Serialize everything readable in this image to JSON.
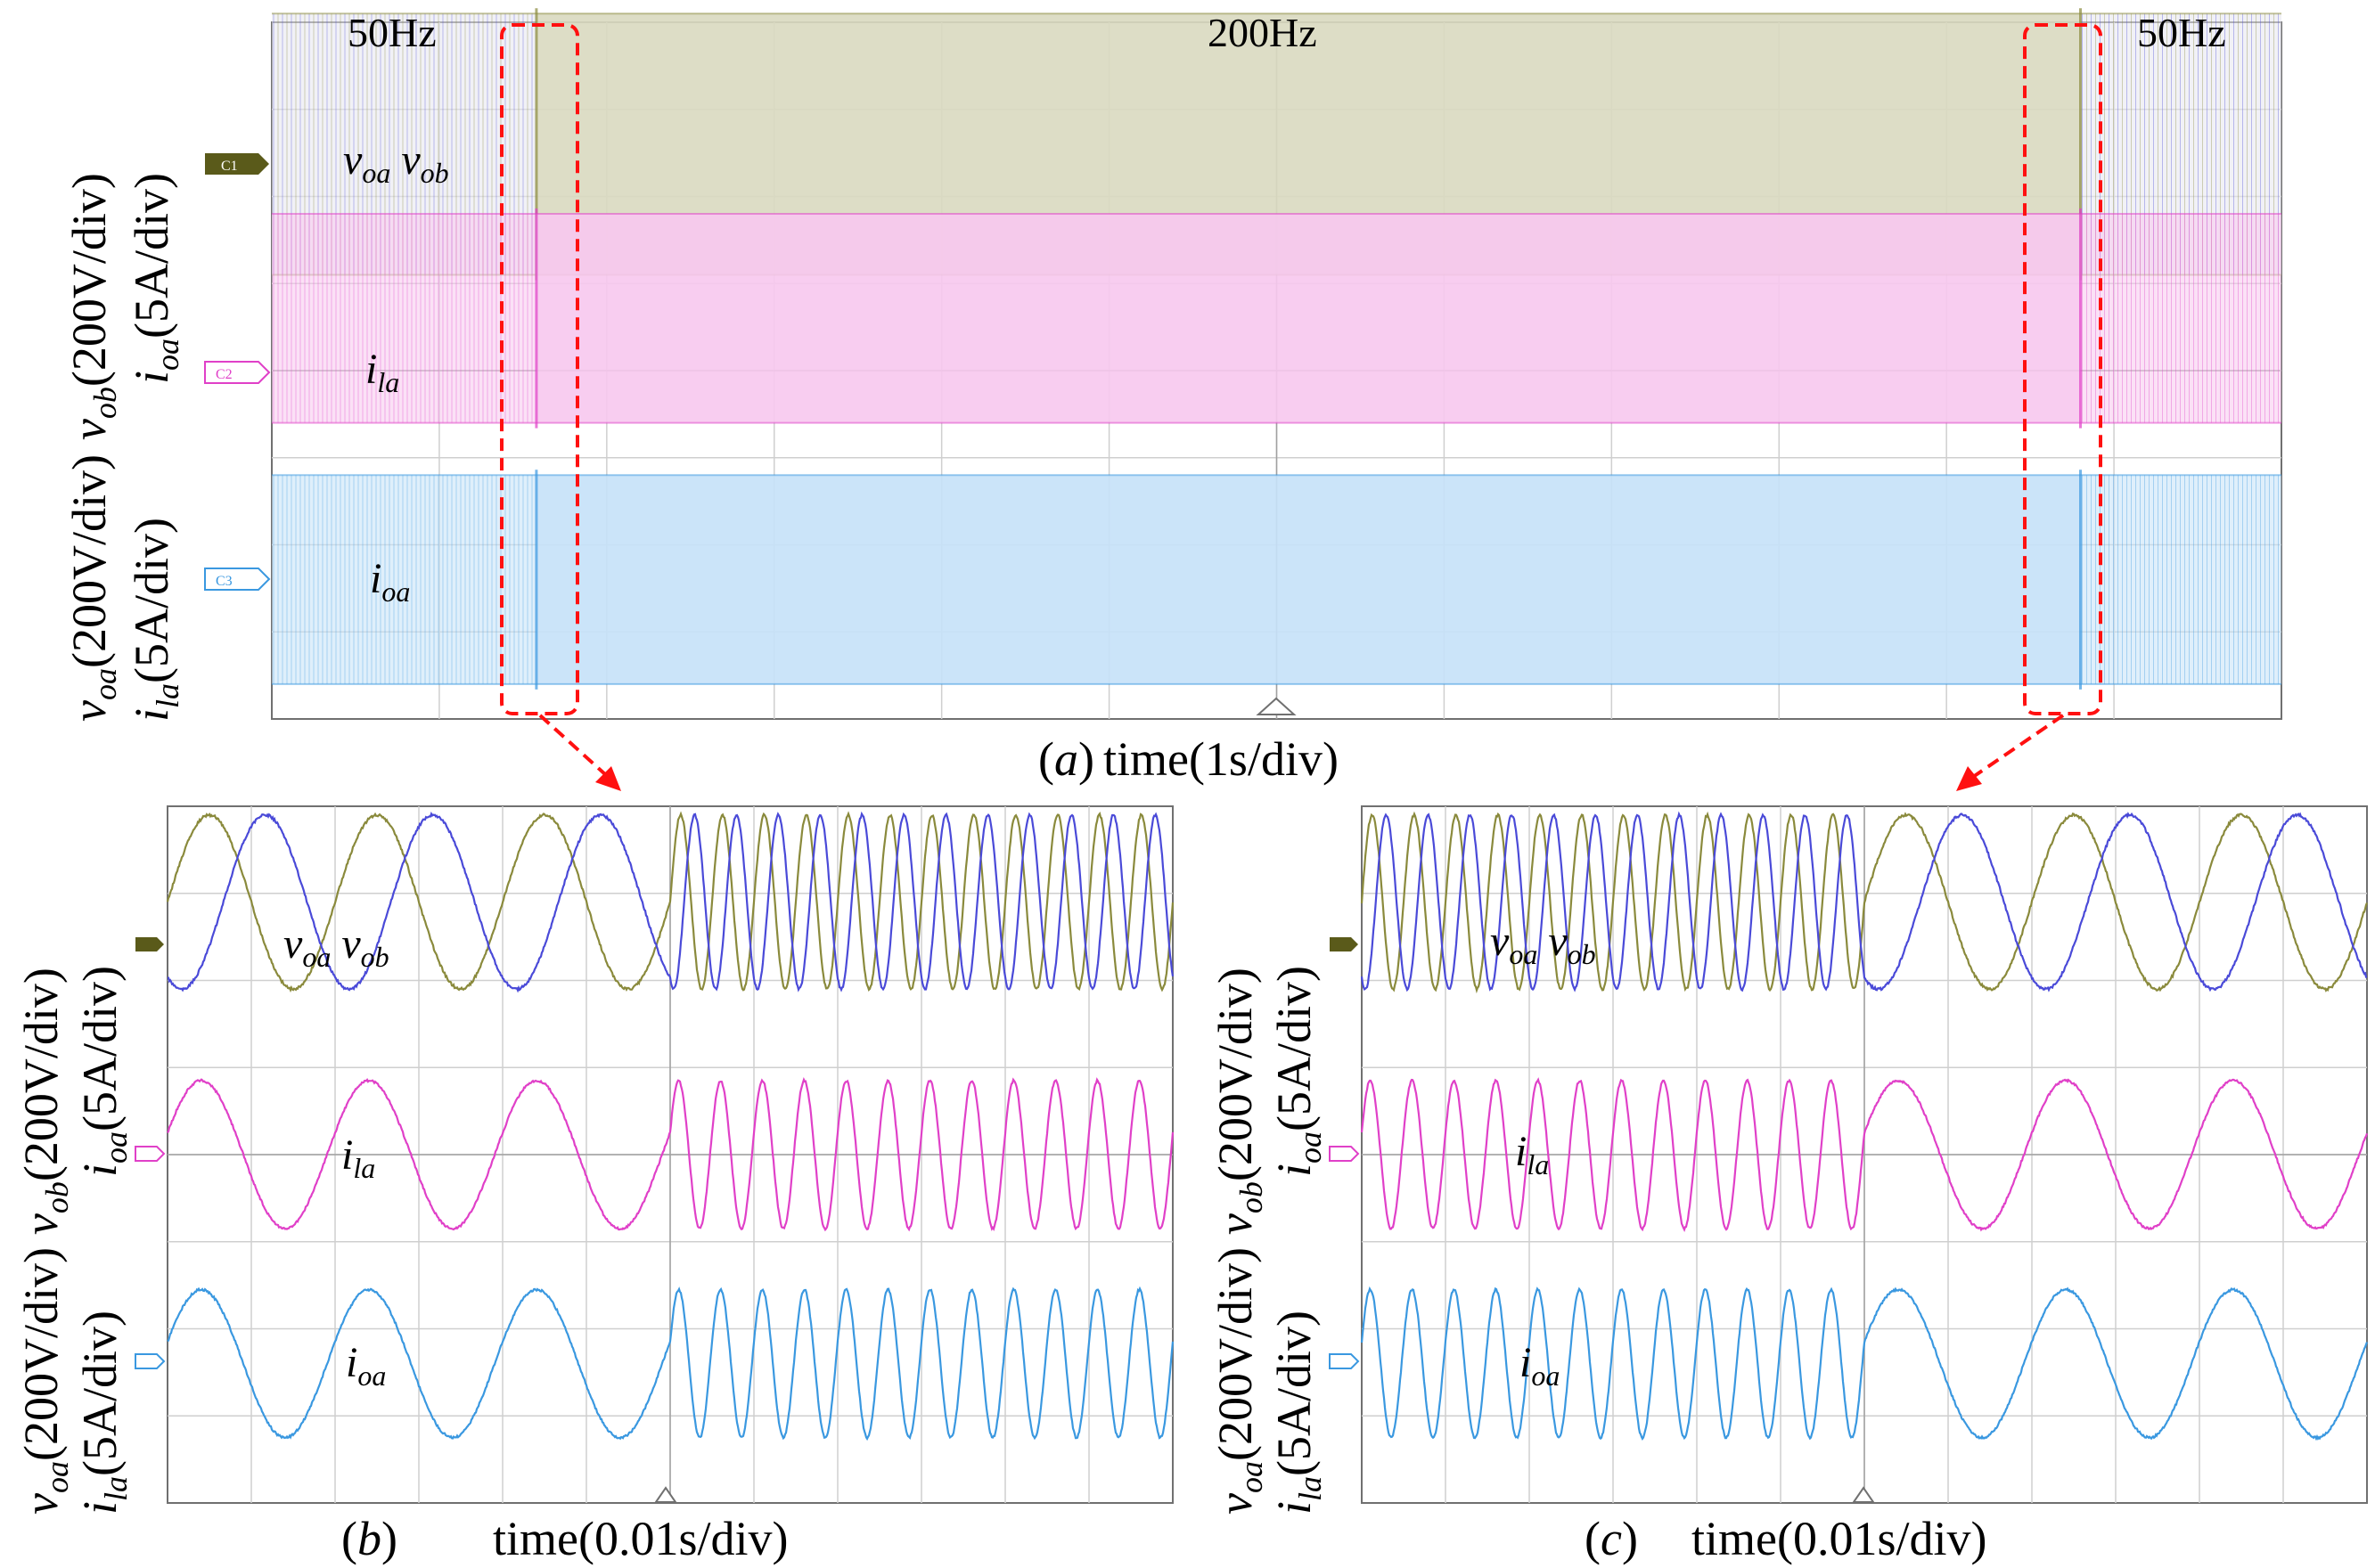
{
  "colors": {
    "voa": "#8a8a3c",
    "vob": "#4a4ad8",
    "ila": "#e040c8",
    "ioa": "#3a98e0",
    "grid": "#cfcfcf",
    "frame": "#707070",
    "highlight": "#ff1010",
    "c1_marker": "#5a5a1a",
    "c2_marker": "#e040c8",
    "c3_marker": "#3a98e0"
  },
  "panels": {
    "a": {
      "caption": "(a)",
      "caption_tag": "a",
      "xlabel": "time(1s/div)",
      "freq_labels": [
        "50Hz",
        "200Hz",
        "50Hz"
      ],
      "ylabel_lines": [
        "v",
        "oa",
        "(200V/div)",
        "v",
        "ob",
        "(200V/div)",
        "i",
        "la",
        "(5A/div)",
        "i",
        "oa",
        "(5A/div)"
      ]
    },
    "b": {
      "caption": "(b)",
      "caption_tag": "b",
      "xlabel": "time(0.01s/div)"
    },
    "c": {
      "caption": "(c)",
      "caption_tag": "c",
      "xlabel": "time(0.01s/div)"
    }
  },
  "signal_labels": {
    "v": "v",
    "oa": "oa",
    "ob": "ob",
    "i": "i",
    "la": "la"
  },
  "channel_markers": [
    "C1",
    "C2",
    "C3"
  ],
  "ylabel": {
    "voa_scale": "(200V/div)",
    "vob_scale": "(200V/div)",
    "ila_scale": "(5A/div)",
    "ioa_scale": "(5A/div)"
  },
  "chart_data": [
    {
      "type": "line",
      "panel": "a",
      "xlabel": "time(1s/div)",
      "x_divisions": 12,
      "y_divisions": 8,
      "grid": true,
      "annotations": [
        "50Hz",
        "200Hz",
        "50Hz"
      ],
      "transitions_div": [
        1.58,
        10.8
      ],
      "frequency_segments_hz": [
        50,
        200,
        50
      ],
      "series": [
        {
          "name": "v_oa",
          "channel": "C1",
          "amplitude_div": 1.5,
          "offset_div": 6.6
        },
        {
          "name": "v_ob",
          "channel": "C1",
          "amplitude_div": 1.5,
          "offset_div": 6.6
        },
        {
          "name": "i_la",
          "channel": "C2",
          "amplitude_div": 1.2,
          "offset_div": 4.6
        },
        {
          "name": "i_oa",
          "channel": "C3",
          "amplitude_div": 1.2,
          "offset_div": 1.6
        }
      ]
    },
    {
      "type": "line",
      "panel": "b",
      "xlabel": "time(0.01s/div)",
      "x_divisions": 12,
      "y_divisions": 8,
      "grid": true,
      "transition_div": 6,
      "frequency_before_hz": 50,
      "frequency_after_hz": 200,
      "series": [
        {
          "name": "v_oa",
          "channel": "C1",
          "amplitude_div": 1.0,
          "offset_div": 6.9
        },
        {
          "name": "v_ob",
          "channel": "C1",
          "amplitude_div": 1.0,
          "offset_div": 6.9
        },
        {
          "name": "i_la",
          "channel": "C2",
          "amplitude_div": 0.85,
          "offset_div": 4.0
        },
        {
          "name": "i_oa",
          "channel": "C3",
          "amplitude_div": 0.85,
          "offset_div": 1.6
        }
      ]
    },
    {
      "type": "line",
      "panel": "c",
      "xlabel": "time(0.01s/div)",
      "x_divisions": 12,
      "y_divisions": 8,
      "grid": true,
      "transition_div": 6,
      "frequency_before_hz": 200,
      "frequency_after_hz": 50,
      "series": [
        {
          "name": "v_oa",
          "channel": "C1",
          "amplitude_div": 1.0,
          "offset_div": 6.9
        },
        {
          "name": "v_ob",
          "channel": "C1",
          "amplitude_div": 1.0,
          "offset_div": 6.9
        },
        {
          "name": "i_la",
          "channel": "C2",
          "amplitude_div": 0.85,
          "offset_div": 4.0
        },
        {
          "name": "i_oa",
          "channel": "C3",
          "amplitude_div": 0.85,
          "offset_div": 1.6
        }
      ]
    }
  ]
}
